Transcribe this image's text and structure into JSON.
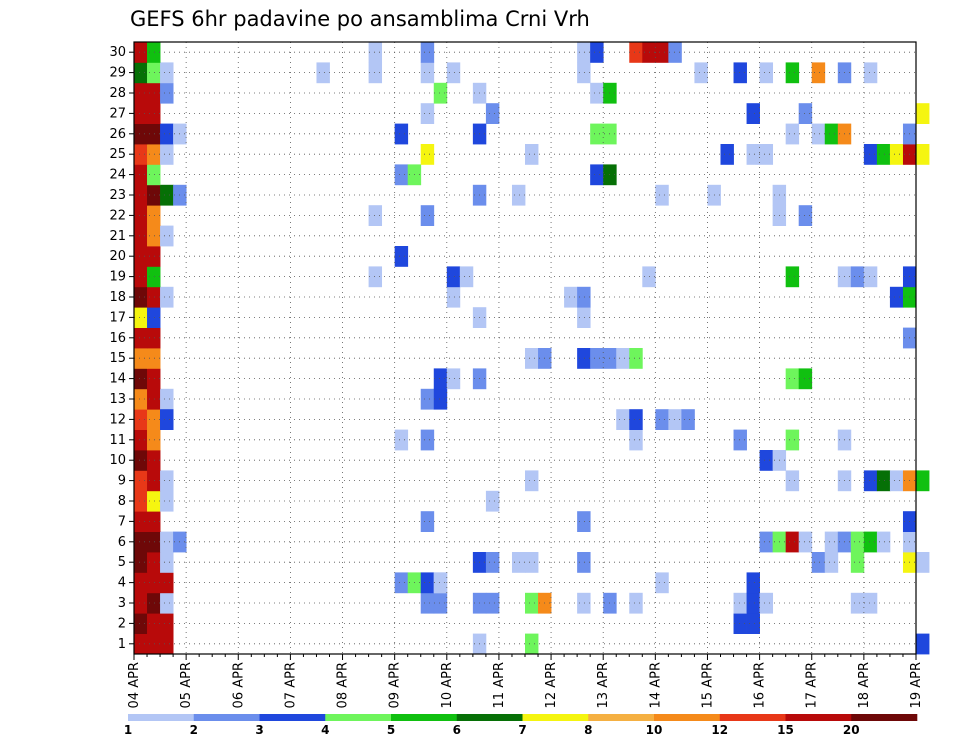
{
  "chart_data": {
    "type": "heatmap",
    "title": "GEFS 6hr padavine po ansamblima Crni Vrh",
    "xlabel": "",
    "ylabel": "",
    "x_ticks": [
      "04 APR",
      "05 APR",
      "06 APR",
      "07 APR",
      "08 APR",
      "09 APR",
      "10 APR",
      "11 APR",
      "12 APR",
      "13 APR",
      "14 APR",
      "15 APR",
      "16 APR",
      "17 APR",
      "18 APR",
      "19 APR"
    ],
    "y_ticks": [
      "1",
      "2",
      "3",
      "4",
      "5",
      "6",
      "7",
      "8",
      "9",
      "10",
      "11",
      "12",
      "13",
      "14",
      "15",
      "16",
      "17",
      "18",
      "19",
      "20",
      "21",
      "22",
      "23",
      "24",
      "25",
      "26",
      "27",
      "28",
      "29",
      "30"
    ],
    "x_range": [
      "04 APR",
      "19 APR"
    ],
    "y_range": [
      1,
      30
    ],
    "grid": true,
    "colorbar": {
      "placement": "bottom",
      "labels": [
        "1",
        "2",
        "3",
        "4",
        "5",
        "6",
        "7",
        "8",
        "10",
        "12",
        "15",
        "20"
      ],
      "colors": [
        "#b3c6f5",
        "#6b8eec",
        "#1f47dd",
        "#6ef55c",
        "#10c010",
        "#067006",
        "#f5f510",
        "#f5b042",
        "#f58a1a",
        "#e83818",
        "#b80a0a",
        "#6e0808"
      ]
    },
    "cells": [
      {
        "m": 1,
        "t": [
          "04 APR 00-06",
          "04 APR 06-12",
          "04 APR 12-18"
        ],
        "v": [
          15,
          15,
          15
        ]
      },
      {
        "m": 2,
        "t": [
          "04 APR 00-06",
          "04 APR 06-12",
          "04 APR 12-18"
        ],
        "v": [
          20,
          15,
          15
        ]
      },
      {
        "m": 3,
        "t": [
          "04 APR 00-06",
          "04 APR 06-12",
          "04 APR 12-18"
        ],
        "v": [
          15,
          20,
          1
        ]
      },
      {
        "m": 4,
        "t": [
          "04 APR 00-06",
          "04 APR 06-12",
          "04 APR 12-18"
        ],
        "v": [
          15,
          15,
          15
        ]
      },
      {
        "m": 5,
        "t": [
          "04 APR 00-06",
          "04 APR 06-12",
          "04 APR 12-18"
        ],
        "v": [
          20,
          15,
          1
        ]
      },
      {
        "m": 6,
        "t": [
          "04 APR 00-06",
          "04 APR 06-12",
          "04 APR 12-18",
          "04 APR 18-24"
        ],
        "v": [
          20,
          20,
          1,
          2
        ]
      },
      {
        "m": 7,
        "t": [
          "04 APR 00-06",
          "04 APR 06-12"
        ],
        "v": [
          15,
          15
        ]
      },
      {
        "m": 8,
        "t": [
          "04 APR 00-06",
          "04 APR 06-12",
          "04 APR 12-18"
        ],
        "v": [
          12,
          7,
          1
        ]
      },
      {
        "m": 9,
        "t": [
          "04 APR 00-06",
          "04 APR 06-12",
          "04 APR 12-18"
        ],
        "v": [
          12,
          15,
          1
        ]
      },
      {
        "m": 10,
        "t": [
          "04 APR 00-06",
          "04 APR 06-12"
        ],
        "v": [
          20,
          15
        ]
      },
      {
        "m": 11,
        "t": [
          "04 APR 00-06",
          "04 APR 06-12"
        ],
        "v": [
          15,
          10
        ]
      },
      {
        "m": 12,
        "t": [
          "04 APR 00-06",
          "04 APR 06-12",
          "04 APR 12-18"
        ],
        "v": [
          12,
          10,
          3
        ]
      },
      {
        "m": 13,
        "t": [
          "04 APR 00-06",
          "04 APR 06-12",
          "04 APR 12-18"
        ],
        "v": [
          10,
          15,
          1
        ]
      },
      {
        "m": 14,
        "t": [
          "04 APR 00-06",
          "04 APR 06-12"
        ],
        "v": [
          20,
          15
        ]
      },
      {
        "m": 15,
        "t": [
          "04 APR 00-06",
          "04 APR 06-12"
        ],
        "v": [
          10,
          10
        ]
      },
      {
        "m": 16,
        "t": [
          "04 APR 00-06",
          "04 APR 06-12"
        ],
        "v": [
          15,
          15
        ]
      },
      {
        "m": 17,
        "t": [
          "04 APR 00-06",
          "04 APR 06-12"
        ],
        "v": [
          7,
          3
        ]
      },
      {
        "m": 18,
        "t": [
          "04 APR 00-06",
          "04 APR 06-12",
          "04 APR 12-18"
        ],
        "v": [
          20,
          15,
          1
        ]
      },
      {
        "m": 19,
        "t": [
          "04 APR 00-06",
          "04 APR 06-12"
        ],
        "v": [
          15,
          5
        ]
      },
      {
        "m": 20,
        "t": [
          "04 APR 00-06",
          "04 APR 06-12"
        ],
        "v": [
          15,
          15
        ]
      },
      {
        "m": 21,
        "t": [
          "04 APR 00-06",
          "04 APR 06-12",
          "04 APR 12-18"
        ],
        "v": [
          15,
          10,
          1
        ]
      },
      {
        "m": 22,
        "t": [
          "04 APR 00-06",
          "04 APR 06-12"
        ],
        "v": [
          15,
          10
        ]
      },
      {
        "m": 23,
        "t": [
          "04 APR 00-06",
          "04 APR 06-12",
          "04 APR 12-18",
          "04 APR 18-24"
        ],
        "v": [
          15,
          20,
          6,
          2
        ]
      },
      {
        "m": 24,
        "t": [
          "04 APR 00-06",
          "04 APR 06-12"
        ],
        "v": [
          15,
          4
        ]
      },
      {
        "m": 25,
        "t": [
          "04 APR 00-06",
          "04 APR 06-12",
          "04 APR 12-18"
        ],
        "v": [
          12,
          10,
          1
        ]
      },
      {
        "m": 26,
        "t": [
          "04 APR 00-06",
          "04 APR 06-12",
          "04 APR 12-18",
          "04 APR 18-24"
        ],
        "v": [
          20,
          20,
          3,
          1
        ]
      },
      {
        "m": 27,
        "t": [
          "04 APR 00-06",
          "04 APR 06-12"
        ],
        "v": [
          15,
          15
        ]
      },
      {
        "m": 28,
        "t": [
          "04 APR 00-06",
          "04 APR 06-12",
          "04 APR 12-18"
        ],
        "v": [
          15,
          15,
          2
        ]
      },
      {
        "m": 29,
        "t": [
          "04 APR 00-06",
          "04 APR 06-12",
          "04 APR 12-18"
        ],
        "v": [
          6,
          4,
          1
        ]
      },
      {
        "m": 30,
        "t": [
          "04 APR 00-06",
          "04 APR 06-12"
        ],
        "v": [
          15,
          5
        ]
      },
      {
        "m": 1,
        "t": [
          "10 APR 12-18",
          "11 APR 12-18",
          "19 APR 00-06"
        ],
        "v": [
          1,
          4,
          3
        ]
      },
      {
        "m": 2,
        "t": [
          "15 APR 12-18",
          "15 APR 18-24"
        ],
        "v": [
          3,
          3
        ]
      },
      {
        "m": 3,
        "t": [
          "09 APR 12-18",
          "09 APR 18-24",
          "10 APR 12-18",
          "10 APR 18-24",
          "11 APR 12-18",
          "11 APR 18-24",
          "12 APR 12-18",
          "13 APR 00-06",
          "13 APR 12-18",
          "15 APR 12-18",
          "15 APR 18-24",
          "16 APR 00-06",
          "17 APR 18-24",
          "18 APR 00-06"
        ],
        "v": [
          2,
          2,
          2,
          2,
          4,
          10,
          1,
          2,
          1,
          1,
          3,
          1,
          1,
          1
        ]
      },
      {
        "m": 4,
        "t": [
          "09 APR 00-06",
          "09 APR 06-12",
          "09 APR 12-18",
          "09 APR 18-24",
          "09 APR 18-24",
          "14 APR 00-06",
          "15 APR 18-24"
        ],
        "v": [
          2,
          4,
          3,
          1,
          1,
          1,
          3
        ]
      },
      {
        "m": 5,
        "t": [
          "10 APR 12-18",
          "10 APR 18-24",
          "11 APR 06-12",
          "11 APR 12-18",
          "12 APR 12-18",
          "17 APR 00-06",
          "17 APR 06-12",
          "17 APR 18-24",
          "18 APR 18-24",
          "19 APR 00-06"
        ],
        "v": [
          3,
          2,
          1,
          1,
          2,
          2,
          1,
          4,
          7,
          1
        ]
      },
      {
        "m": 6,
        "t": [
          "16 APR 00-06",
          "16 APR 06-12",
          "16 APR 12-18",
          "16 APR 18-24",
          "17 APR 06-12",
          "17 APR 12-18",
          "17 APR 18-24",
          "18 APR 00-06",
          "18 APR 06-12",
          "18 APR 18-24"
        ],
        "v": [
          2,
          4,
          15,
          1,
          1,
          2,
          4,
          5,
          1,
          1
        ]
      },
      {
        "m": 7,
        "t": [
          "09 APR 12-18",
          "12 APR 12-18",
          "18 APR 18-24"
        ],
        "v": [
          2,
          2,
          3
        ]
      },
      {
        "m": 8,
        "t": [
          "10 APR 18-24"
        ],
        "v": [
          1
        ]
      },
      {
        "m": 9,
        "t": [
          "11 APR 12-18",
          "16 APR 12-18",
          "17 APR 12-18",
          "18 APR 00-06",
          "18 APR 06-12",
          "18 APR 12-18",
          "18 APR 18-24",
          "19 APR 00-06"
        ],
        "v": [
          1,
          1,
          1,
          3,
          6,
          1,
          10,
          5
        ]
      },
      {
        "m": 10,
        "t": [
          "16 APR 00-06",
          "16 APR 06-12"
        ],
        "v": [
          3,
          1
        ]
      },
      {
        "m": 11,
        "t": [
          "09 APR 00-06",
          "09 APR 12-18",
          "13 APR 12-18",
          "15 APR 12-18",
          "16 APR 12-18",
          "17 APR 12-18"
        ],
        "v": [
          1,
          2,
          1,
          2,
          4,
          1
        ]
      },
      {
        "m": 12,
        "t": [
          "04 APR 12-18",
          "13 APR 06-12",
          "13 APR 12-18",
          "14 APR 00-06",
          "14 APR 06-12",
          "14 APR 12-18"
        ],
        "v": [
          3,
          1,
          3,
          2,
          1,
          2
        ]
      },
      {
        "m": 13,
        "t": [
          "09 APR 12-18",
          "09 APR 18-24"
        ],
        "v": [
          2,
          3
        ]
      },
      {
        "m": 14,
        "t": [
          "09 APR 18-24",
          "10 APR 00-06",
          "10 APR 12-18",
          "16 APR 12-18",
          "16 APR 18-24"
        ],
        "v": [
          3,
          1,
          2,
          4,
          5
        ]
      },
      {
        "m": 15,
        "t": [
          "11 APR 12-18",
          "11 APR 18-24",
          "12 APR 12-18",
          "12 APR 18-24",
          "13 APR 00-06",
          "13 APR 06-12",
          "13 APR 12-18"
        ],
        "v": [
          1,
          2,
          3,
          2,
          2,
          1,
          4
        ]
      },
      {
        "m": 16,
        "t": [
          "18 APR 18-24"
        ],
        "v": [
          2
        ]
      },
      {
        "m": 17,
        "t": [
          "10 APR 12-18",
          "12 APR 12-18"
        ],
        "v": [
          1,
          1
        ]
      },
      {
        "m": 18,
        "t": [
          "10 APR 00-06",
          "12 APR 06-12",
          "12 APR 12-18",
          "18 APR 12-18",
          "18 APR 18-24"
        ],
        "v": [
          1,
          1,
          2,
          3,
          5
        ]
      },
      {
        "m": 19,
        "t": [
          "08 APR 12-18",
          "10 APR 00-06",
          "10 APR 06-12",
          "13 APR 18-24",
          "16 APR 12-18",
          "17 APR 12-18",
          "17 APR 18-24",
          "18 APR 00-06",
          "18 APR 18-24"
        ],
        "v": [
          1,
          3,
          1,
          1,
          5,
          1,
          2,
          1,
          3
        ]
      },
      {
        "m": 20,
        "t": [
          "09 APR 00-06"
        ],
        "v": [
          3
        ]
      },
      {
        "m": 21,
        "t": [],
        "v": []
      },
      {
        "m": 22,
        "t": [
          "08 APR 12-18",
          "09 APR 12-18",
          "16 APR 06-12",
          "16 APR 18-24"
        ],
        "v": [
          1,
          2,
          1,
          2
        ]
      },
      {
        "m": 23,
        "t": [
          "10 APR 12-18",
          "11 APR 06-12",
          "14 APR 00-06",
          "15 APR 00-06",
          "16 APR 06-12"
        ],
        "v": [
          2,
          1,
          1,
          1,
          1
        ]
      },
      {
        "m": 24,
        "t": [
          "09 APR 00-06",
          "09 APR 06-12",
          "12 APR 18-24",
          "13 APR 00-06"
        ],
        "v": [
          2,
          4,
          3,
          6
        ]
      },
      {
        "m": 25,
        "t": [
          "09 APR 12-18",
          "11 APR 12-18",
          "15 APR 06-12",
          "15 APR 18-24",
          "16 APR 00-06",
          "18 APR 00-06",
          "18 APR 06-12",
          "18 APR 12-18",
          "18 APR 18-24",
          "19 APR 00-06"
        ],
        "v": [
          7,
          1,
          3,
          1,
          1,
          3,
          5,
          7,
          15,
          7
        ]
      },
      {
        "m": 26,
        "t": [
          "09 APR 00-06",
          "10 APR 12-18",
          "12 APR 18-24",
          "13 APR 00-06",
          "16 APR 12-18",
          "17 APR 00-06",
          "17 APR 06-12",
          "17 APR 12-18",
          "18 APR 18-24"
        ],
        "v": [
          3,
          3,
          4,
          4,
          1,
          1,
          5,
          10,
          2
        ]
      },
      {
        "m": 27,
        "t": [
          "09 APR 12-18",
          "10 APR 18-24",
          "15 APR 18-24",
          "16 APR 18-24",
          "19 APR 00-06"
        ],
        "v": [
          1,
          2,
          3,
          2,
          7
        ]
      },
      {
        "m": 28,
        "t": [
          "09 APR 18-24",
          "10 APR 12-18",
          "12 APR 18-24",
          "13 APR 00-06"
        ],
        "v": [
          4,
          1,
          1,
          5
        ]
      },
      {
        "m": 29,
        "t": [
          "07 APR 12-18",
          "08 APR 12-18",
          "09 APR 12-18",
          "10 APR 00-06",
          "12 APR 12-18",
          "14 APR 18-24",
          "15 APR 12-18",
          "16 APR 00-06",
          "16 APR 12-18",
          "17 APR 00-06",
          "17 APR 12-18",
          "18 APR 00-06"
        ],
        "v": [
          1,
          1,
          1,
          1,
          1,
          1,
          3,
          1,
          5,
          10,
          2,
          1
        ]
      },
      {
        "m": 30,
        "t": [
          "08 APR 12-18",
          "09 APR 12-18",
          "12 APR 12-18",
          "12 APR 18-24",
          "13 APR 12-18",
          "13 APR 18-24",
          "14 APR 00-06",
          "14 APR 06-12"
        ],
        "v": [
          1,
          2,
          1,
          3,
          12,
          15,
          15,
          2
        ]
      }
    ]
  }
}
